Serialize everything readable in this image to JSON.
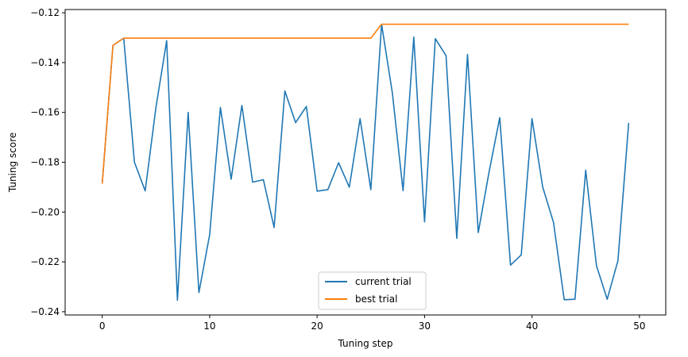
{
  "chart_data": {
    "type": "line",
    "title": "",
    "xlabel": "Tuning step",
    "ylabel": "Tuning score",
    "xlim": [
      -3.45,
      52.45
    ],
    "ylim": [
      -0.2413,
      -0.1187
    ],
    "xticks": [
      0,
      10,
      20,
      30,
      40,
      50
    ],
    "yticks": [
      -0.24,
      -0.22,
      -0.2,
      -0.18,
      -0.16,
      -0.14,
      -0.12
    ],
    "grid": false,
    "legend_placement": "lower center",
    "x": [
      0,
      1,
      2,
      3,
      4,
      5,
      6,
      7,
      8,
      9,
      10,
      11,
      12,
      13,
      14,
      15,
      16,
      17,
      18,
      19,
      20,
      21,
      22,
      23,
      24,
      25,
      26,
      27,
      28,
      29,
      30,
      31,
      32,
      33,
      34,
      35,
      36,
      37,
      38,
      39,
      40,
      41,
      42,
      43,
      44,
      45,
      46,
      47,
      48,
      49
    ],
    "series": [
      {
        "name": "current trial",
        "color": "#1f77b4",
        "values": [
          -0.1886,
          -0.1331,
          -0.1302,
          -0.18,
          -0.1915,
          -0.158,
          -0.1312,
          -0.2354,
          -0.16,
          -0.2323,
          -0.2091,
          -0.158,
          -0.1868,
          -0.1572,
          -0.188,
          -0.187,
          -0.2062,
          -0.1514,
          -0.1641,
          -0.1576,
          -0.1916,
          -0.191,
          -0.1802,
          -0.19,
          -0.1625,
          -0.191,
          -0.1246,
          -0.152,
          -0.1914,
          -0.1298,
          -0.2039,
          -0.1304,
          -0.1372,
          -0.2105,
          -0.1367,
          -0.2082,
          -0.184,
          -0.1621,
          -0.2213,
          -0.2172,
          -0.1625,
          -0.19,
          -0.2041,
          -0.2352,
          -0.235,
          -0.1832,
          -0.2215,
          -0.235,
          -0.2195,
          -0.1642
        ]
      },
      {
        "name": "best trial",
        "color": "#ff7f0e",
        "values": [
          -0.1886,
          -0.1331,
          -0.1302,
          -0.1302,
          -0.1302,
          -0.1302,
          -0.1302,
          -0.1302,
          -0.1302,
          -0.1302,
          -0.1302,
          -0.1302,
          -0.1302,
          -0.1302,
          -0.1302,
          -0.1302,
          -0.1302,
          -0.1302,
          -0.1302,
          -0.1302,
          -0.1302,
          -0.1302,
          -0.1302,
          -0.1302,
          -0.1302,
          -0.1302,
          -0.1246,
          -0.1246,
          -0.1246,
          -0.1246,
          -0.1246,
          -0.1246,
          -0.1246,
          -0.1246,
          -0.1246,
          -0.1246,
          -0.1246,
          -0.1246,
          -0.1246,
          -0.1246,
          -0.1246,
          -0.1246,
          -0.1246,
          -0.1246,
          -0.1246,
          -0.1246,
          -0.1246,
          -0.1246,
          -0.1246,
          -0.1246
        ]
      }
    ]
  }
}
